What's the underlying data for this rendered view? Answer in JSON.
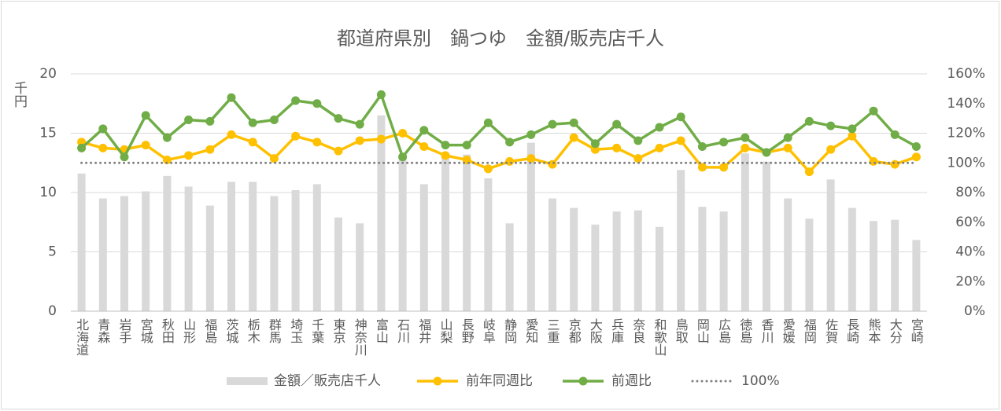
{
  "chart_data": {
    "type": "bar",
    "title": "都道府県別　鍋つゆ　金額/販売店千人",
    "y_label": "千円",
    "categories": [
      "北海道",
      "青森",
      "岩手",
      "宮城",
      "秋田",
      "山形",
      "福島",
      "茨城",
      "栃木",
      "群馬",
      "埼玉",
      "千葉",
      "東京",
      "神奈川",
      "富山",
      "石川",
      "福井",
      "山梨",
      "長野",
      "岐阜",
      "静岡",
      "愛知",
      "三重",
      "京都",
      "大阪",
      "兵庫",
      "奈良",
      "和歌山",
      "鳥取",
      "岡山",
      "広島",
      "徳島",
      "香川",
      "愛媛",
      "福岡",
      "佐賀",
      "長崎",
      "熊本",
      "大分",
      "宮崎"
    ],
    "series": [
      {
        "name": "金額／販売店千人",
        "type": "bar",
        "axis": "y",
        "color": "#d9d9d9",
        "values": [
          11.6,
          9.5,
          9.7,
          10.1,
          11.4,
          10.5,
          8.9,
          10.9,
          10.9,
          9.7,
          10.2,
          10.7,
          7.9,
          7.4,
          16.5,
          13.2,
          10.7,
          13.0,
          13.2,
          11.2,
          7.4,
          14.2,
          9.5,
          8.7,
          7.3,
          8.4,
          8.5,
          7.1,
          11.9,
          8.8,
          8.4,
          13.3,
          12.6,
          9.5,
          7.8,
          11.1,
          8.7,
          7.6,
          7.7,
          6.0
        ]
      },
      {
        "name": "前年同週比",
        "type": "line",
        "axis": "y2",
        "color": "#ffc000",
        "values": [
          114,
          110,
          109,
          112,
          102,
          105,
          109,
          119,
          114,
          103,
          118,
          114,
          108,
          115,
          116,
          120,
          111,
          105,
          102,
          96,
          101,
          103,
          99,
          117,
          109,
          110,
          103,
          110,
          115,
          97,
          97,
          110,
          107,
          110,
          94,
          109,
          118,
          101,
          99,
          104
        ]
      },
      {
        "name": "前週比",
        "type": "line",
        "axis": "y2",
        "color": "#70ad47",
        "values": [
          110,
          123,
          104,
          132,
          117,
          129,
          128,
          144,
          127,
          129,
          142,
          140,
          130,
          126,
          146,
          104,
          122,
          112,
          112,
          127,
          114,
          119,
          126,
          127,
          113,
          126,
          115,
          124,
          131,
          111,
          114,
          117,
          107,
          117,
          128,
          125,
          123,
          135,
          119,
          111
        ]
      },
      {
        "name": "100%",
        "type": "dotted",
        "axis": "y2",
        "color": "#808080",
        "values": [
          100,
          100,
          100,
          100,
          100,
          100,
          100,
          100,
          100,
          100,
          100,
          100,
          100,
          100,
          100,
          100,
          100,
          100,
          100,
          100,
          100,
          100,
          100,
          100,
          100,
          100,
          100,
          100,
          100,
          100,
          100,
          100,
          100,
          100,
          100,
          100,
          100,
          100,
          100,
          100
        ]
      }
    ],
    "ylim": [
      0,
      20
    ],
    "yticks": [
      0,
      5,
      10,
      15,
      20
    ],
    "y2lim": [
      0,
      160
    ],
    "y2ticks": [
      {
        "value": 0,
        "label": "0%"
      },
      {
        "value": 20,
        "label": "20%"
      },
      {
        "value": 40,
        "label": "40%"
      },
      {
        "value": 60,
        "label": "60%"
      },
      {
        "value": 80,
        "label": "80%"
      },
      {
        "value": 100,
        "label": "100%"
      },
      {
        "value": 120,
        "label": "120%"
      },
      {
        "value": 140,
        "label": "140%"
      },
      {
        "value": 160,
        "label": "160%"
      }
    ],
    "grid": true,
    "legend": "bottom"
  }
}
